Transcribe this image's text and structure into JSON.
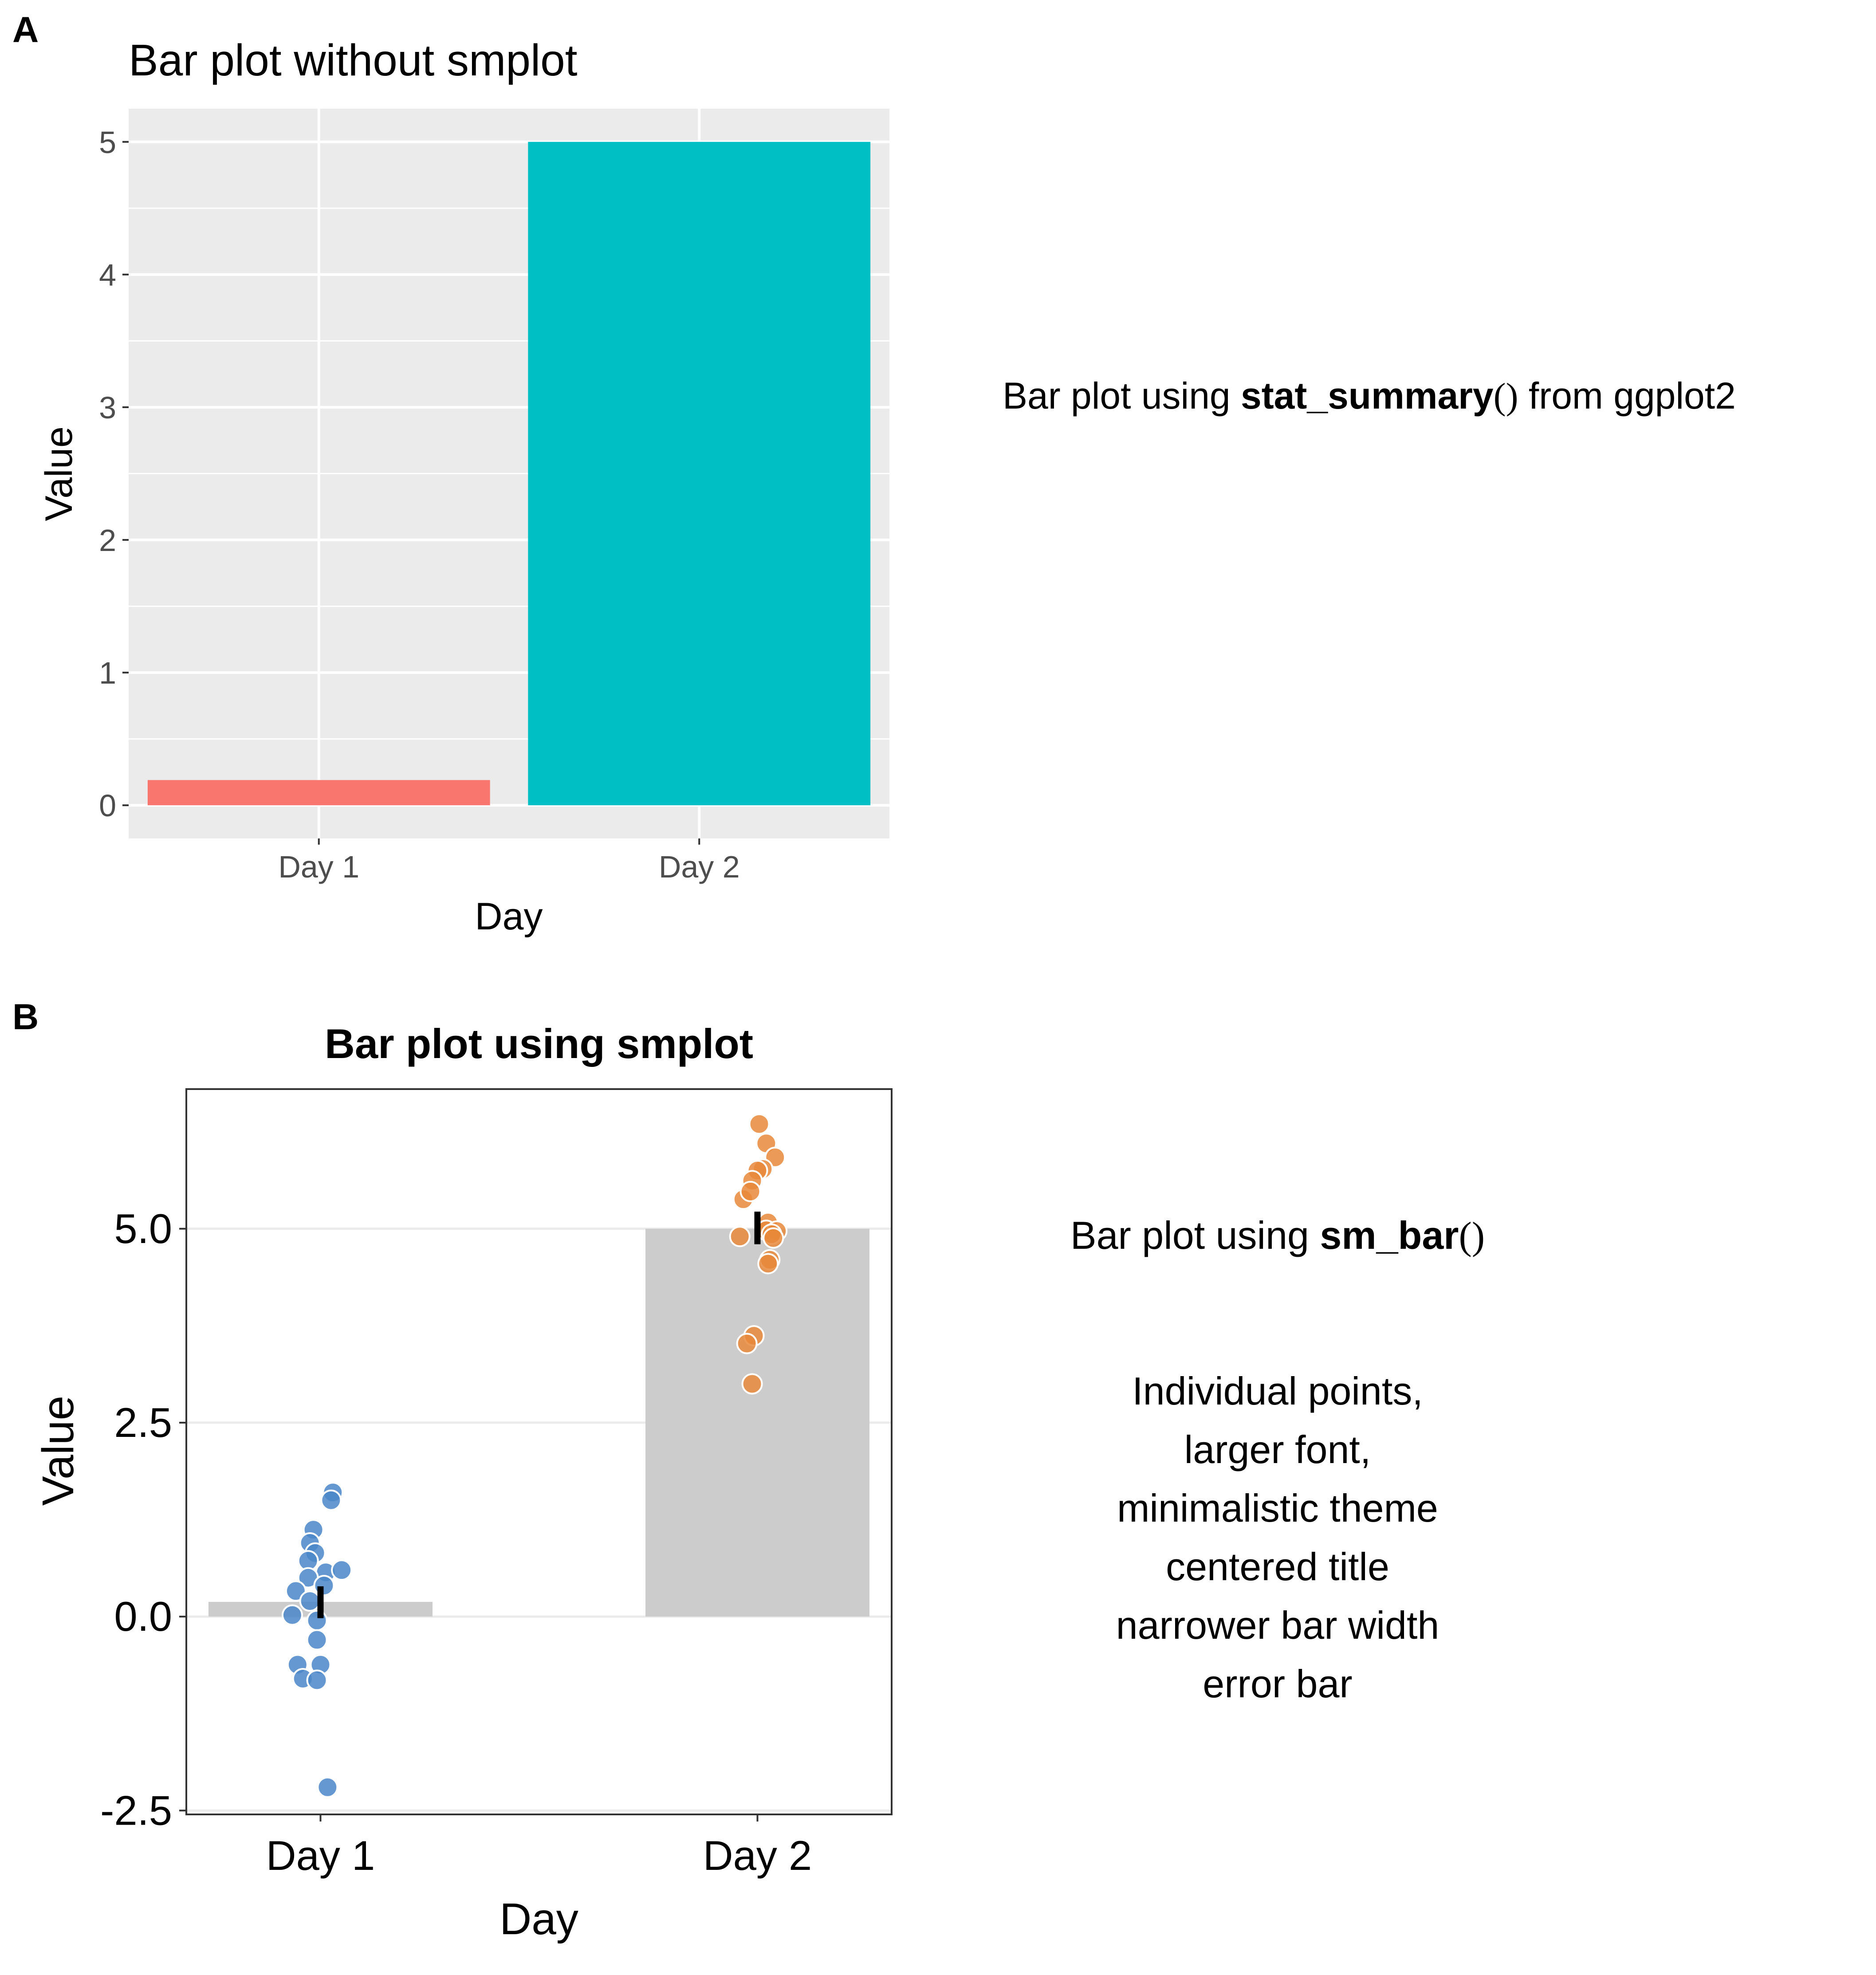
{
  "panels": {
    "a": {
      "letter": "A",
      "annotation": {
        "prefix": "Bar plot using ",
        "func": "stat_summary",
        "paren": "()",
        "suffix": " from ggplot2"
      }
    },
    "b": {
      "letter": "B",
      "annotation": {
        "prefix": "Bar plot using ",
        "func": "sm_bar",
        "paren": "()",
        "suffix": ""
      },
      "features": [
        "Individual points,",
        "larger font,",
        "minimalistic theme",
        "centered title",
        "narrower bar width",
        "error bar"
      ]
    }
  },
  "chart_data": [
    {
      "type": "bar",
      "title": "Bar plot without smplot",
      "xlabel": "Day",
      "ylabel": "Value",
      "categories": [
        "Day 1",
        "Day 2"
      ],
      "values": [
        0.19,
        5.0
      ],
      "colors": [
        "#F8766D",
        "#00BFC4"
      ],
      "ylim": [
        -0.25,
        5.25
      ],
      "yticks": [
        "0",
        "1",
        "2",
        "3",
        "4",
        "5"
      ],
      "grid": true,
      "background": "#EBEBEB"
    },
    {
      "type": "bar",
      "title": "Bar plot using smplot",
      "xlabel": "Day",
      "ylabel": "Value",
      "categories": [
        "Day 1",
        "Day 2"
      ],
      "values": [
        0.19,
        5.0
      ],
      "bar_color": "#CCCCCC",
      "ylim": [
        -2.55,
        6.8
      ],
      "yticks": [
        "-2.5",
        "0.0",
        "2.5",
        "5.0"
      ],
      "error_bars": [
        [
          -0.02,
          0.39
        ],
        [
          4.8,
          5.22
        ]
      ],
      "series": [
        {
          "category": "Day 1",
          "color": "#4A86C8",
          "points": [
            {
              "dx": 0.07,
              "y": 1.6
            },
            {
              "dx": 0.06,
              "y": 1.5
            },
            {
              "dx": -0.04,
              "y": 1.12
            },
            {
              "dx": -0.06,
              "y": 0.95
            },
            {
              "dx": -0.03,
              "y": 0.82
            },
            {
              "dx": -0.07,
              "y": 0.72
            },
            {
              "dx": 0.03,
              "y": 0.57
            },
            {
              "dx": 0.12,
              "y": 0.6
            },
            {
              "dx": -0.07,
              "y": 0.5
            },
            {
              "dx": 0.02,
              "y": 0.4
            },
            {
              "dx": -0.14,
              "y": 0.33
            },
            {
              "dx": -0.06,
              "y": 0.2
            },
            {
              "dx": -0.16,
              "y": 0.02
            },
            {
              "dx": -0.02,
              "y": -0.05
            },
            {
              "dx": -0.02,
              "y": -0.3
            },
            {
              "dx": -0.13,
              "y": -0.62
            },
            {
              "dx": 0.0,
              "y": -0.62
            },
            {
              "dx": -0.1,
              "y": -0.8
            },
            {
              "dx": -0.02,
              "y": -0.82
            },
            {
              "dx": 0.04,
              "y": -2.2
            }
          ]
        },
        {
          "category": "Day 2",
          "color": "#E8883A",
          "points": [
            {
              "dx": 0.01,
              "y": 6.35
            },
            {
              "dx": 0.05,
              "y": 6.1
            },
            {
              "dx": 0.1,
              "y": 5.92
            },
            {
              "dx": 0.03,
              "y": 5.77
            },
            {
              "dx": 0.0,
              "y": 5.75
            },
            {
              "dx": -0.03,
              "y": 5.62
            },
            {
              "dx": -0.08,
              "y": 5.38
            },
            {
              "dx": -0.04,
              "y": 5.48
            },
            {
              "dx": 0.06,
              "y": 5.08
            },
            {
              "dx": 0.05,
              "y": 4.98
            },
            {
              "dx": 0.11,
              "y": 4.97
            },
            {
              "dx": 0.08,
              "y": 4.93
            },
            {
              "dx": -0.1,
              "y": 4.9
            },
            {
              "dx": 0.09,
              "y": 4.88
            },
            {
              "dx": 0.07,
              "y": 4.6
            },
            {
              "dx": 0.06,
              "y": 4.55
            },
            {
              "dx": -0.02,
              "y": 3.62
            },
            {
              "dx": -0.06,
              "y": 3.52
            },
            {
              "dx": -0.03,
              "y": 3.0
            }
          ]
        }
      ],
      "grid": "horizontal major only",
      "frame": true
    }
  ]
}
